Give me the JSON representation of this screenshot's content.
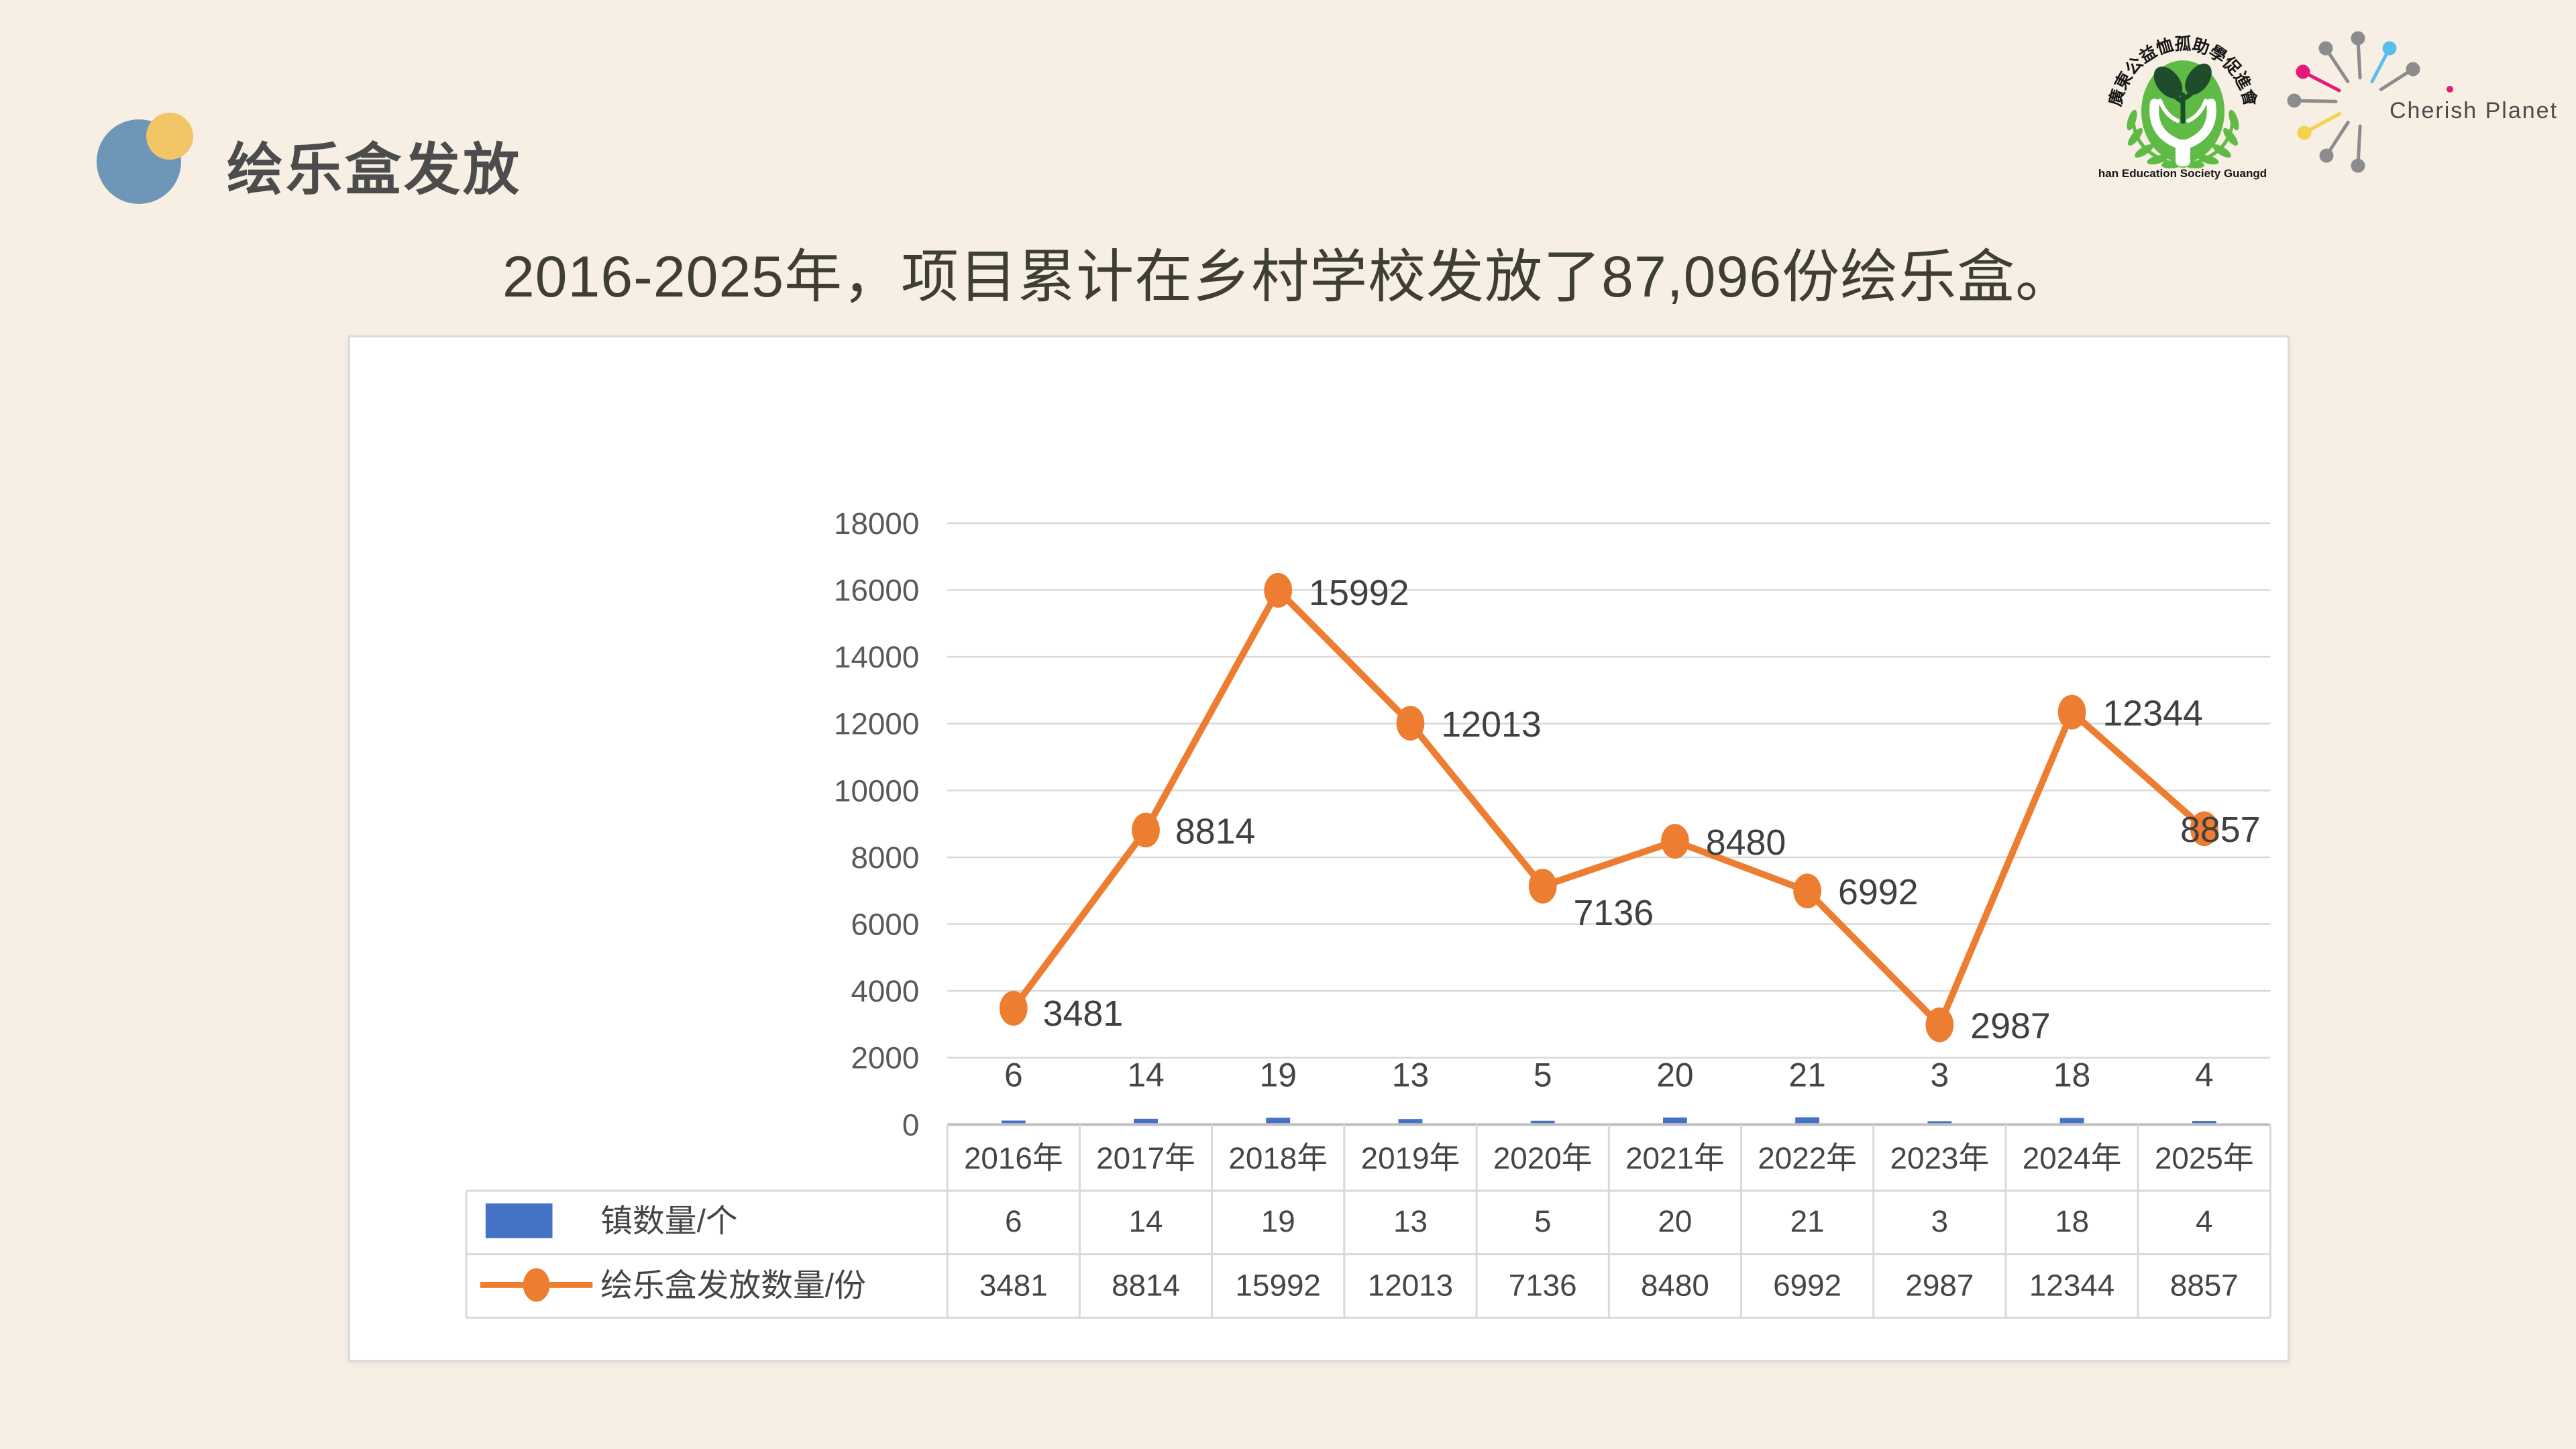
{
  "slide": {
    "title": "绘乐盒发放",
    "subtitle": "2016-2025年，项目累计在乡村学校发放了87,096份绘乐盒。",
    "background_color": "#F7EFE4",
    "accent_circle_blue": "#6E96B8",
    "accent_circle_yellow": "#F2C567",
    "title_color": "#4C4C4C"
  },
  "logos": {
    "emblem": {
      "arc_text": "廣東公益恤孤助學促進會",
      "caption": "Orphan Education Society Guangdong",
      "green": "#5FBB46",
      "dark_leaf": "#1E4D2B"
    },
    "cherish": {
      "label": "Cherish Planet 愛童行",
      "gray": "#8C8C8C",
      "pink": "#E6197B",
      "blue": "#56BFEA",
      "yellow": "#F6D14E"
    }
  },
  "chart_data": {
    "type": "line+bar",
    "title": "",
    "categories": [
      "2016年",
      "2017年",
      "2018年",
      "2019年",
      "2020年",
      "2021年",
      "2022年",
      "2023年",
      "2024年",
      "2025年"
    ],
    "series": [
      {
        "name": "镇数量/个",
        "type": "bar",
        "color": "#4472C4",
        "values": [
          6,
          14,
          19,
          13,
          5,
          20,
          21,
          3,
          18,
          4
        ]
      },
      {
        "name": "绘乐盒发放数量/份",
        "type": "line",
        "color": "#ED7D31",
        "values": [
          3481,
          8814,
          15992,
          12013,
          7136,
          8480,
          6992,
          2987,
          12344,
          8857
        ]
      }
    ],
    "ylim": [
      0,
      18000
    ],
    "ytick_step": 2000,
    "grid": true,
    "gridline_color": "#D9D9D9",
    "axis_line_color": "#BFBFBF",
    "table_border_color": "#D9D9D9",
    "label_color": "#454545",
    "tick_color": "#595959",
    "legend_position": "data-table-left",
    "data_table": true
  }
}
